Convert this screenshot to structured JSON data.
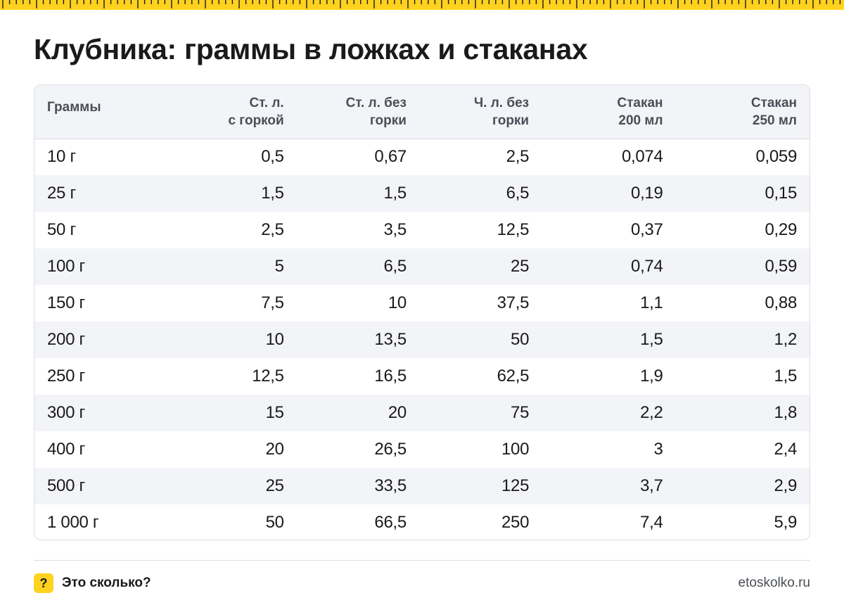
{
  "theme": {
    "accent": "#ffd21f",
    "text": "#1a1a1a",
    "muted": "#4a4e57",
    "stripe": "#f3f4f8",
    "border": "#dcdee3"
  },
  "title": "Клубника: граммы в ложках и стаканах",
  "table": {
    "headers": [
      [
        "Граммы"
      ],
      [
        "Ст. л.",
        "с горкой"
      ],
      [
        "Ст. л. без",
        "горки"
      ],
      [
        "Ч. л. без",
        "горки"
      ],
      [
        "Стакан",
        "200 мл"
      ],
      [
        "Стакан",
        "250 мл"
      ]
    ],
    "rows": [
      [
        "10 г",
        "0,5",
        "0,67",
        "2,5",
        "0,074",
        "0,059"
      ],
      [
        "25 г",
        "1,5",
        "1,5",
        "6,5",
        "0,19",
        "0,15"
      ],
      [
        "50 г",
        "2,5",
        "3,5",
        "12,5",
        "0,37",
        "0,29"
      ],
      [
        "100 г",
        "5",
        "6,5",
        "25",
        "0,74",
        "0,59"
      ],
      [
        "150 г",
        "7,5",
        "10",
        "37,5",
        "1,1",
        "0,88"
      ],
      [
        "200 г",
        "10",
        "13,5",
        "50",
        "1,5",
        "1,2"
      ],
      [
        "250 г",
        "12,5",
        "16,5",
        "62,5",
        "1,9",
        "1,5"
      ],
      [
        "300 г",
        "15",
        "20",
        "75",
        "2,2",
        "1,8"
      ],
      [
        "400 г",
        "20",
        "26,5",
        "100",
        "3",
        "2,4"
      ],
      [
        "500 г",
        "25",
        "33,5",
        "125",
        "3,7",
        "2,9"
      ],
      [
        "1 000 г",
        "50",
        "66,5",
        "250",
        "7,4",
        "5,9"
      ]
    ]
  },
  "footer": {
    "badge": "?",
    "brand": "Это сколько?",
    "site": "etoskolko.ru",
    "badge_icon": "question-mark-icon"
  }
}
